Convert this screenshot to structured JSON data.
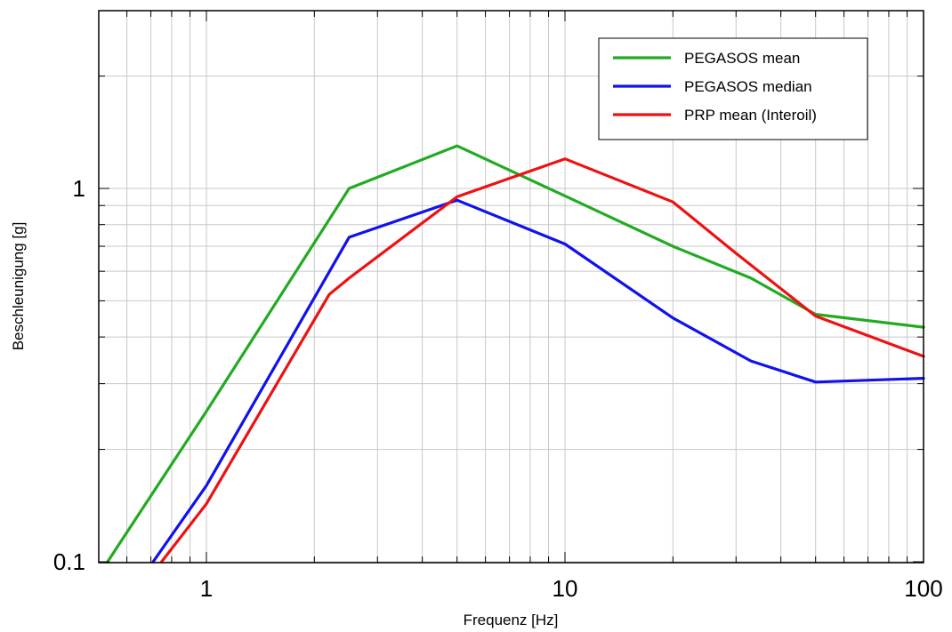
{
  "chart_data": {
    "type": "line",
    "title": "",
    "xlabel": "Frequenz [Hz]",
    "ylabel": "Beschleunigung [g]",
    "xscale": "log",
    "yscale": "log",
    "xlim": [
      0.53,
      100
    ],
    "ylim": [
      0.1,
      2.8
    ],
    "x_ticks": [
      {
        "value": 1,
        "label": "1"
      },
      {
        "value": 10,
        "label": "10"
      },
      {
        "value": 100,
        "label": "100"
      }
    ],
    "y_ticks": [
      {
        "value": 0.1,
        "label": "0.1"
      },
      {
        "value": 1,
        "label": "1"
      }
    ],
    "grid": true,
    "legend": "top-right",
    "series": [
      {
        "name": "PEGASOS mean",
        "color": "#22aa22",
        "points": [
          [
            0.53,
            0.1
          ],
          [
            1,
            0.253
          ],
          [
            2.5,
            1.0
          ],
          [
            5,
            1.3
          ],
          [
            10,
            0.955
          ],
          [
            20,
            0.7
          ],
          [
            33,
            0.575
          ],
          [
            50,
            0.46
          ],
          [
            100,
            0.425
          ]
        ]
      },
      {
        "name": "PEGASOS median",
        "color": "#1111ee",
        "points": [
          [
            0.71,
            0.1
          ],
          [
            1,
            0.16
          ],
          [
            2.5,
            0.74
          ],
          [
            5,
            0.93
          ],
          [
            10,
            0.71
          ],
          [
            20,
            0.45
          ],
          [
            33,
            0.345
          ],
          [
            50,
            0.303
          ],
          [
            100,
            0.31
          ]
        ]
      },
      {
        "name": "PRP mean (Interoil)",
        "color": "#ee1111",
        "points": [
          [
            0.75,
            0.1
          ],
          [
            1,
            0.143
          ],
          [
            2.2,
            0.52
          ],
          [
            2.5,
            0.575
          ],
          [
            5,
            0.95
          ],
          [
            10,
            1.2
          ],
          [
            20,
            0.92
          ],
          [
            30,
            0.67
          ],
          [
            50,
            0.455
          ],
          [
            100,
            0.355
          ]
        ]
      }
    ]
  }
}
